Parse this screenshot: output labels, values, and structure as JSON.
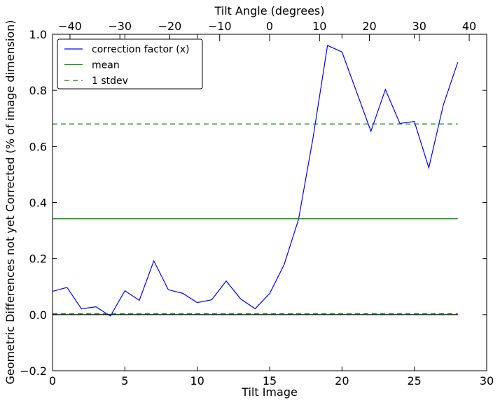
{
  "chart_data": {
    "type": "line",
    "title": "",
    "xlabel": "Tilt Image",
    "ylabel": "Geometric Differences not yet Corrected (% of image dimension)",
    "top_xlabel": "Tilt Angle (degrees)",
    "xlim": [
      0,
      30
    ],
    "ylim": [
      -0.2,
      1.0
    ],
    "top_xlim": [
      -43.5,
      43.5
    ],
    "x_ticks": [
      0,
      5,
      10,
      15,
      20,
      25,
      30
    ],
    "y_ticks": [
      -0.2,
      0.0,
      0.2,
      0.4,
      0.6,
      0.8,
      1.0
    ],
    "top_ticks": [
      -40,
      -30,
      -20,
      -10,
      0,
      10,
      20,
      30,
      40
    ],
    "x_tick_labels": [
      "0",
      "5",
      "10",
      "15",
      "20",
      "25",
      "30"
    ],
    "y_tick_labels": [
      "−0.2",
      "0.0",
      "0.2",
      "0.4",
      "0.6",
      "0.8",
      "1.0"
    ],
    "top_tick_labels": [
      "−40",
      "−30",
      "−20",
      "−10",
      "0",
      "10",
      "20",
      "30",
      "40"
    ],
    "grid": false,
    "legend_position": "top-left",
    "series": [
      {
        "name": "correction factor (x)",
        "color": "#0000ff",
        "style": "solid",
        "x": [
          0,
          1,
          2,
          3,
          4,
          5,
          6,
          7,
          8,
          9,
          10,
          11,
          12,
          13,
          14,
          15,
          16,
          17,
          18,
          19,
          20,
          21,
          22,
          23,
          24,
          25,
          26,
          27,
          28
        ],
        "values": [
          0.083,
          0.097,
          0.021,
          0.028,
          -0.005,
          0.085,
          0.051,
          0.192,
          0.089,
          0.076,
          0.043,
          0.053,
          0.12,
          0.056,
          0.021,
          0.075,
          0.178,
          0.34,
          0.63,
          0.96,
          0.937,
          0.796,
          0.654,
          0.803,
          0.682,
          0.689,
          0.524,
          0.747,
          0.9
        ]
      },
      {
        "name": "mean",
        "color": "#008000",
        "style": "solid",
        "x": [
          0,
          28
        ],
        "values": [
          0.342,
          0.342
        ]
      },
      {
        "name": "1 stdev",
        "color": "#008000",
        "style": "dashed",
        "x": [
          0,
          28
        ],
        "values": [
          0.68,
          0.68
        ]
      },
      {
        "name": "",
        "color": "#008000",
        "style": "dashed",
        "x": [
          0,
          28
        ],
        "values": [
          0.003,
          0.003
        ]
      },
      {
        "name": "",
        "color": "#000000",
        "style": "solid",
        "x": [
          0,
          28
        ],
        "values": [
          0.0,
          0.0
        ]
      }
    ]
  }
}
